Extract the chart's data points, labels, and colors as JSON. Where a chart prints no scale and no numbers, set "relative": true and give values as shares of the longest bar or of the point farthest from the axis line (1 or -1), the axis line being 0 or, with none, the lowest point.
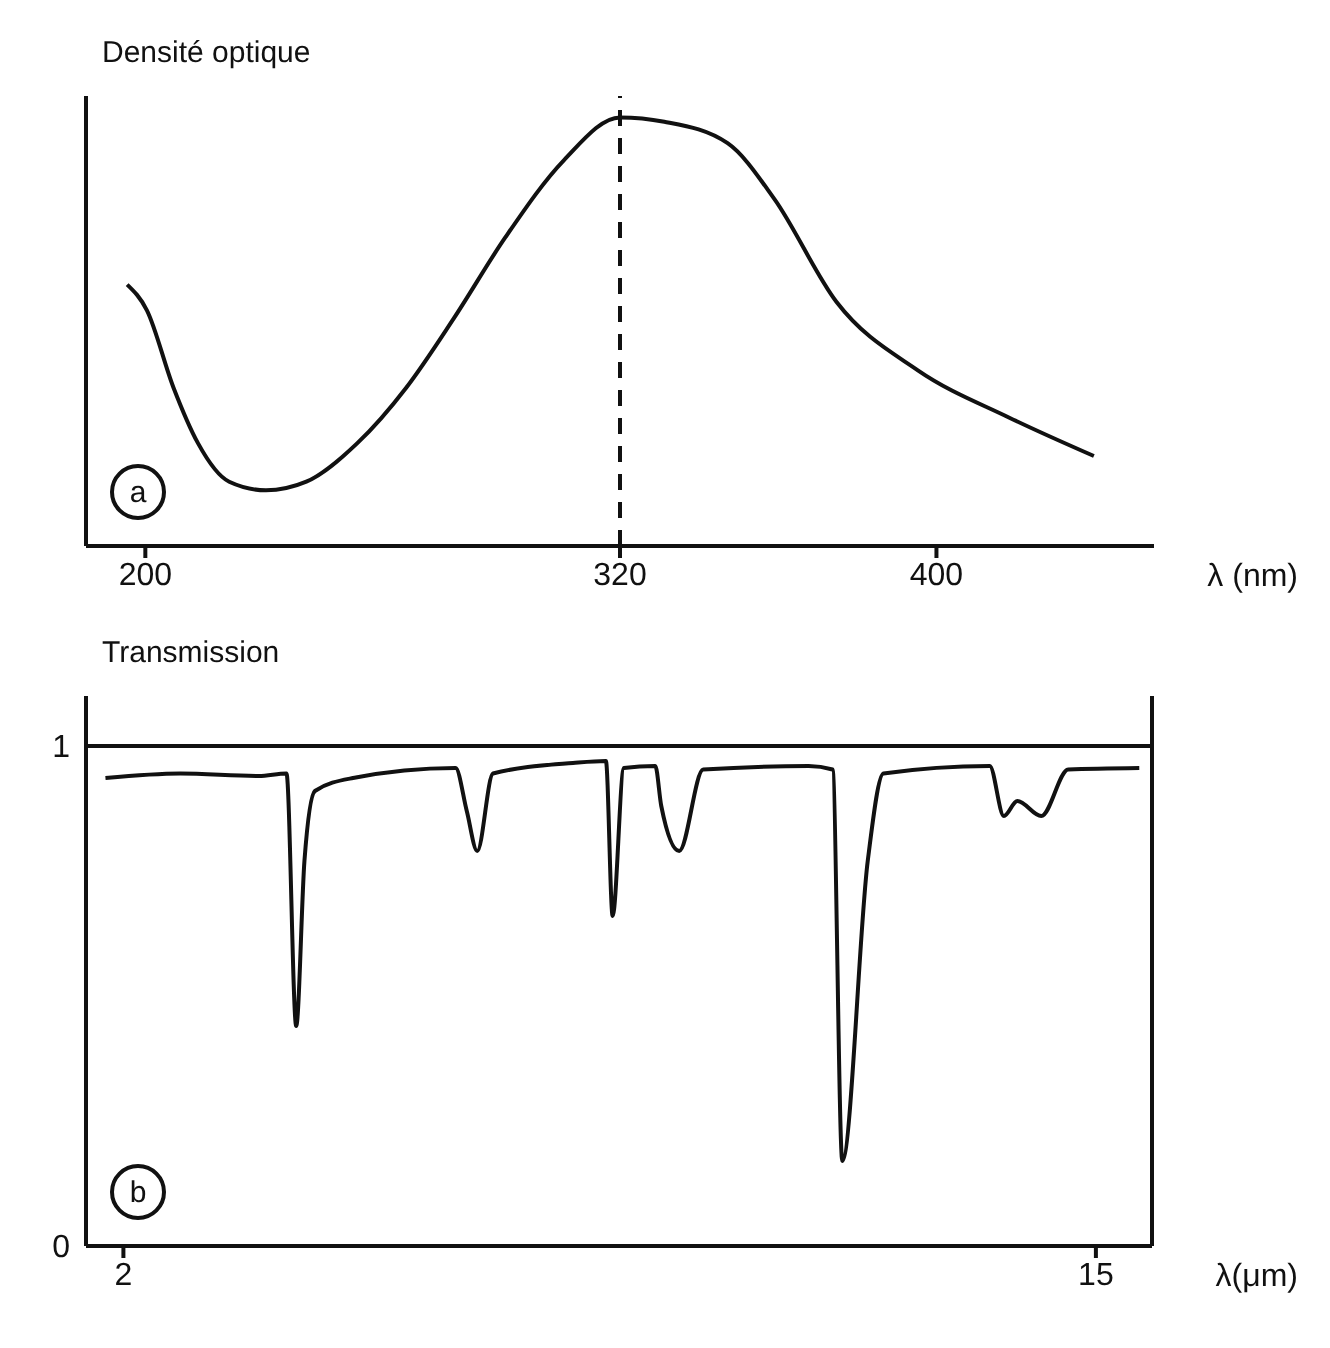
{
  "chart_data": [
    {
      "type": "line",
      "ylabel": "Densité optique",
      "xlabel": "λ (nm)",
      "relative": true,
      "color": "#111111",
      "marker": "none",
      "line_style": "solid",
      "x": [
        195.4,
        200.4,
        207.1,
        213.3,
        221.2,
        230.5,
        240.7,
        253.6,
        266.0,
        277.9,
        291.0,
        305.8,
        320,
        331.2,
        347.2,
        359.0,
        374.7,
        395.3,
        418.3,
        439.8
      ],
      "values": [
        0.61,
        0.55,
        0.37,
        0.24,
        0.15,
        0.13,
        0.15,
        0.24,
        0.37,
        0.53,
        0.72,
        0.9,
        1,
        0.99,
        0.94,
        0.81,
        0.57,
        0.41,
        0.3,
        0.21
      ],
      "xlim": [
        185,
        455
      ],
      "xticks": [
        200,
        320,
        400
      ],
      "ref_lines": [
        {
          "axis": "x",
          "value": 320,
          "line_style": "dashed",
          "color": "#111111"
        }
      ],
      "annotations": [
        "a"
      ]
    },
    {
      "type": "line",
      "ylabel": "Transmission",
      "xlabel": "λ(μm)",
      "color": "#111111",
      "marker": "none",
      "line_style": "solid",
      "x": [
        1.76,
        2.76,
        3.81,
        4.18,
        4.31,
        4.42,
        4.56,
        5.07,
        6.44,
        6.59,
        6.73,
        6.94,
        8.01,
        8.45,
        8.54,
        8.69,
        9.11,
        9.19,
        9.43,
        9.75,
        11.16,
        11.48,
        11.61,
        11.95,
        12.16,
        13.58,
        13.77,
        13.95,
        14.27,
        14.63,
        15.58
      ],
      "values": [
        0.936,
        0.945,
        0.94,
        0.945,
        0.44,
        0.77,
        0.91,
        0.936,
        0.956,
        0.87,
        0.79,
        0.945,
        0.966,
        0.97,
        0.66,
        0.956,
        0.96,
        0.88,
        0.79,
        0.953,
        0.96,
        0.953,
        0.17,
        0.77,
        0.945,
        0.96,
        0.86,
        0.89,
        0.86,
        0.953,
        0.956
      ],
      "xlim": [
        1.5,
        15.75
      ],
      "xticks": [
        2,
        15
      ],
      "ylim": [
        0,
        1.1
      ],
      "yticks": [
        0,
        1
      ],
      "ref_lines": [
        {
          "axis": "y",
          "value": 1,
          "line_style": "solid",
          "color": "#111111"
        }
      ],
      "annotations": [
        "b"
      ]
    }
  ]
}
